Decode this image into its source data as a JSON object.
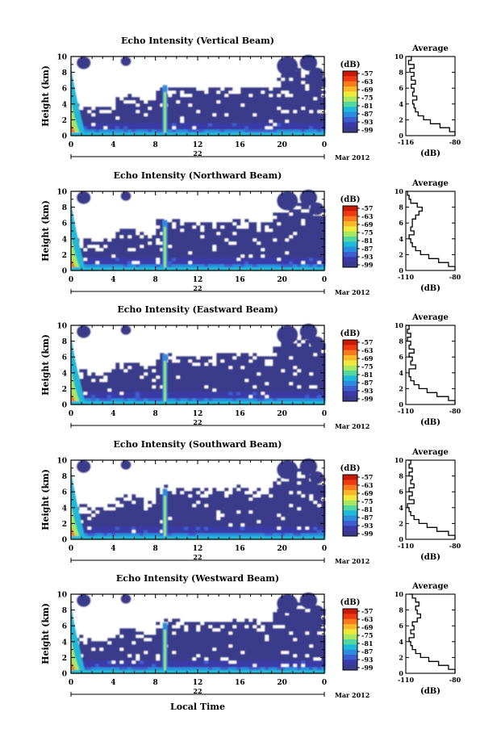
{
  "figure": {
    "x_axis_label": "Local Time",
    "date_label": "Mar 2012",
    "average_title": "Average",
    "average_xlabel": "(dB)",
    "colorbar_unit": "(dB)",
    "colorbar_ticks": [
      "-57",
      "-63",
      "-69",
      "-75",
      "-81",
      "-87",
      "-93",
      "-99"
    ],
    "colorbar_colors": [
      "#c81a08",
      "#ee3a12",
      "#f87a1e",
      "#f8b82a",
      "#f0e83c",
      "#a8e860",
      "#52d89e",
      "#20b8d8",
      "#2c8ce0",
      "#3e5ed0",
      "#3a3aa8",
      "#3a3a8c"
    ]
  },
  "chart_data": [
    {
      "type": "heatmap",
      "title": "Echo Intensity (Vertical Beam)",
      "ylabel": "Height (km)",
      "ylim": [
        0,
        10
      ],
      "yticks": [
        "0",
        "2",
        "4",
        "6",
        "8",
        "10"
      ],
      "xlim": [
        0,
        24
      ],
      "xticks": [
        "0",
        "4",
        "8",
        "12",
        "16",
        "20",
        "0"
      ],
      "day_label": "22",
      "zlim": [
        -99,
        -57
      ],
      "average_profile": {
        "xlim": [
          -116,
          -80
        ],
        "xticks": [
          "-116",
          "-80"
        ],
        "height_km": [
          0,
          0.5,
          1,
          1.5,
          2,
          2.5,
          3,
          3.5,
          4,
          4.5,
          5,
          5.5,
          6,
          6.5,
          7,
          7.5,
          8,
          8.5,
          9,
          9.5,
          10
        ],
        "db": [
          -80,
          -84,
          -91,
          -98,
          -103,
          -107,
          -109,
          -110,
          -111,
          -108,
          -111,
          -110,
          -112,
          -109,
          -112,
          -110,
          -113,
          -110,
          -114,
          -112,
          -115
        ]
      }
    },
    {
      "type": "heatmap",
      "title": "Echo Intensity (Northward Beam)",
      "ylabel": "Height (km)",
      "ylim": [
        0,
        10
      ],
      "yticks": [
        "0",
        "2",
        "4",
        "6",
        "8",
        "10"
      ],
      "xlim": [
        0,
        24
      ],
      "xticks": [
        "0",
        "4",
        "8",
        "12",
        "16",
        "20",
        "0"
      ],
      "day_label": "22",
      "zlim": [
        -99,
        -57
      ],
      "average_profile": {
        "xlim": [
          -110,
          -80
        ],
        "xticks": [
          "-110",
          "-80"
        ],
        "height_km": [
          0,
          0.5,
          1,
          1.5,
          2,
          2.5,
          3,
          3.5,
          4,
          4.5,
          5,
          5.5,
          6,
          6.5,
          7,
          7.5,
          8,
          8.5,
          9,
          9.5,
          10
        ],
        "db": [
          -80,
          -84,
          -90,
          -96,
          -101,
          -104,
          -106,
          -107,
          -108,
          -105,
          -107,
          -106,
          -106,
          -104,
          -102,
          -100,
          -103,
          -107,
          -108,
          -109,
          -110
        ]
      }
    },
    {
      "type": "heatmap",
      "title": "Echo Intensity (Eastward Beam)",
      "ylabel": "Height (km)",
      "ylim": [
        0,
        10
      ],
      "yticks": [
        "0",
        "2",
        "4",
        "6",
        "8",
        "10"
      ],
      "xlim": [
        0,
        24
      ],
      "xticks": [
        "0",
        "4",
        "8",
        "12",
        "16",
        "20",
        "0"
      ],
      "day_label": "22",
      "zlim": [
        -99,
        -57
      ],
      "average_profile": {
        "xlim": [
          -110,
          -80
        ],
        "xticks": [
          "-110",
          "-80"
        ],
        "height_km": [
          0,
          0.5,
          1,
          1.5,
          2,
          2.5,
          3,
          3.5,
          4,
          4.5,
          5,
          5.5,
          6,
          6.5,
          7,
          7.5,
          8,
          8.5,
          9,
          9.5,
          10
        ],
        "db": [
          -80,
          -84,
          -91,
          -97,
          -102,
          -105,
          -107,
          -108,
          -108,
          -104,
          -107,
          -106,
          -108,
          -105,
          -108,
          -107,
          -109,
          -107,
          -109,
          -108,
          -110
        ]
      }
    },
    {
      "type": "heatmap",
      "title": "Echo Intensity (Southward Beam)",
      "ylabel": "Height (km)",
      "ylim": [
        0,
        10
      ],
      "yticks": [
        "0",
        "2",
        "4",
        "6",
        "8",
        "10"
      ],
      "xlim": [
        0,
        24
      ],
      "xticks": [
        "0",
        "4",
        "8",
        "12",
        "16",
        "20",
        "0"
      ],
      "day_label": "22",
      "zlim": [
        -99,
        -57
      ],
      "average_profile": {
        "xlim": [
          -110,
          -80
        ],
        "xticks": [
          "-110",
          "-80"
        ],
        "height_km": [
          0,
          0.5,
          1,
          1.5,
          2,
          2.5,
          3,
          3.5,
          4,
          4.5,
          5,
          5.5,
          6,
          6.5,
          7,
          7.5,
          8,
          8.5,
          9,
          9.5,
          10
        ],
        "db": [
          -80,
          -84,
          -91,
          -97,
          -102,
          -105,
          -107,
          -108,
          -109,
          -105,
          -108,
          -106,
          -108,
          -105,
          -107,
          -106,
          -108,
          -106,
          -108,
          -107,
          -109
        ]
      }
    },
    {
      "type": "heatmap",
      "title": "Echo Intensity (Westward Beam)",
      "ylabel": "Height (km)",
      "ylim": [
        0,
        10
      ],
      "yticks": [
        "0",
        "2",
        "4",
        "6",
        "8",
        "10"
      ],
      "xlim": [
        0,
        24
      ],
      "xticks": [
        "0",
        "4",
        "8",
        "12",
        "16",
        "20",
        "0"
      ],
      "day_label": "22",
      "zlim": [
        -99,
        -57
      ],
      "average_profile": {
        "xlim": [
          -110,
          -80
        ],
        "xticks": [
          "-110",
          "-80"
        ],
        "height_km": [
          0,
          0.5,
          1,
          1.5,
          2,
          2.5,
          3,
          3.5,
          4,
          4.5,
          5,
          5.5,
          6,
          6.5,
          7,
          7.5,
          8,
          8.5,
          9,
          9.5,
          10
        ],
        "db": [
          -80,
          -84,
          -90,
          -96,
          -101,
          -104,
          -106,
          -107,
          -108,
          -105,
          -107,
          -105,
          -106,
          -103,
          -101,
          -103,
          -104,
          -102,
          -104,
          -106,
          -108
        ]
      }
    }
  ]
}
